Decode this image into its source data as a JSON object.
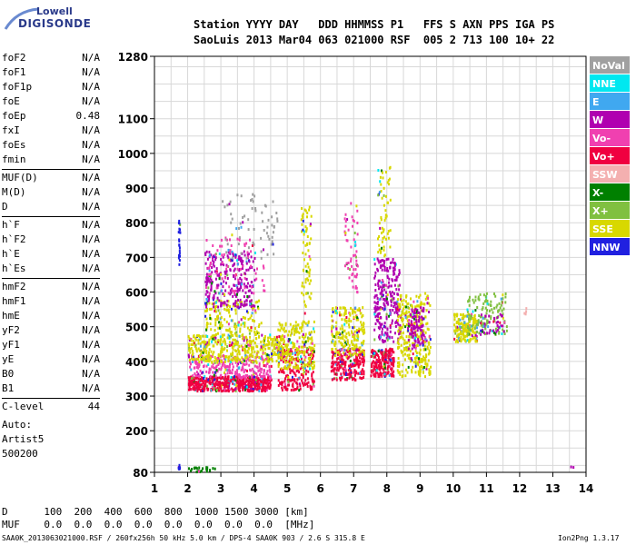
{
  "logo": {
    "line1": "Lowell",
    "line2": "DIGISONDE"
  },
  "header": {
    "line1": "Station YYYY DAY   DDD HHMMSS P1   FFS S AXN PPS IGA PS",
    "line2": "SaoLuis 2013 Mar04 063 021000 RSF  005 2 713 100 10+ 22"
  },
  "params": {
    "groups": [
      [
        [
          "foF2",
          "N/A"
        ],
        [
          "foF1",
          "N/A"
        ],
        [
          "foF1p",
          "N/A"
        ],
        [
          "foE",
          "N/A"
        ],
        [
          "foEp",
          "0.48"
        ],
        [
          "fxI",
          "N/A"
        ],
        [
          "foEs",
          "N/A"
        ],
        [
          "fmin",
          "N/A"
        ]
      ],
      [
        [
          "MUF(D)",
          "N/A"
        ],
        [
          "M(D)",
          "N/A"
        ],
        [
          "D",
          "N/A"
        ]
      ],
      [
        [
          "h`F",
          "N/A"
        ],
        [
          "h`F2",
          "N/A"
        ],
        [
          "h`E",
          "N/A"
        ],
        [
          "h`Es",
          "N/A"
        ]
      ],
      [
        [
          "hmF2",
          "N/A"
        ],
        [
          "hmF1",
          "N/A"
        ],
        [
          "hmE",
          "N/A"
        ],
        [
          "yF2",
          "N/A"
        ],
        [
          "yF1",
          "N/A"
        ],
        [
          "yE",
          "N/A"
        ],
        [
          "B0",
          "N/A"
        ],
        [
          "B1",
          "N/A"
        ]
      ],
      [
        [
          "C-level",
          "44"
        ]
      ]
    ],
    "auto_label": "Auto:",
    "artist": "Artist5",
    "artist_code": "500200"
  },
  "mufd": {
    "row_d": "D      100  200  400  600  800  1000 1500 3000 [km]",
    "row_muf": "MUF    0.0  0.0  0.0  0.0  0.0  0.0  0.0  0.0  [MHz]"
  },
  "footer": {
    "left": "SAA0K_2013063021000.RSF / 260fx256h 50 kHz 5.0 km / DPS-4 SAA0K 903 / 2.6 S 315.8 E",
    "right": "Ion2Png 1.3.17"
  },
  "legend": [
    {
      "label": "NoVal",
      "bg": "#a0a0a0"
    },
    {
      "label": "NNE",
      "bg": "#00e8f0"
    },
    {
      "label": "E",
      "bg": "#40a8f0"
    },
    {
      "label": "W",
      "bg": "#b000b0"
    },
    {
      "label": "Vo-",
      "bg": "#f040b0"
    },
    {
      "label": "Vo+",
      "bg": "#f00040"
    },
    {
      "label": "SSW",
      "bg": "#f4b0b0"
    },
    {
      "label": "X-",
      "bg": "#008000"
    },
    {
      "label": "X+",
      "bg": "#80c040"
    },
    {
      "label": "SSE",
      "bg": "#d8d800"
    },
    {
      "label": "NNW",
      "bg": "#2020e0"
    }
  ],
  "chart_data": {
    "type": "scatter",
    "title": "",
    "xlabel": "",
    "ylabel": "",
    "x_unit": "MHz",
    "y_unit": "km",
    "xlim": [
      1,
      14
    ],
    "ylim": [
      80,
      1280
    ],
    "x_ticks": [
      1,
      2,
      3,
      4,
      5,
      6,
      7,
      8,
      9,
      10,
      11,
      12,
      13,
      14
    ],
    "y_ticks": [
      80,
      200,
      300,
      400,
      500,
      600,
      700,
      800,
      900,
      1000,
      1100,
      1280
    ],
    "grid": true,
    "legend_position": "right",
    "regions": [
      {
        "x": [
          1.7,
          1.75
        ],
        "y": [
          680,
          820
        ],
        "color": "NNW",
        "n": 20
      },
      {
        "x": [
          1.7,
          1.75
        ],
        "y": [
          85,
          105
        ],
        "color": "NNW",
        "n": 8
      },
      {
        "x": [
          2.0,
          2.8
        ],
        "y": [
          85,
          100
        ],
        "color": "X-",
        "n": 25
      },
      {
        "x": [
          2.0,
          4.5
        ],
        "y": [
          318,
          360
        ],
        "color": "Vo+",
        "n": 520
      },
      {
        "x": [
          2.0,
          4.5
        ],
        "y": [
          355,
          420
        ],
        "color": "Vo-",
        "n": 260
      },
      {
        "x": [
          2.0,
          4.8
        ],
        "y": [
          400,
          480
        ],
        "color": "SSE",
        "n": 420
      },
      {
        "x": [
          2.5,
          4.2
        ],
        "y": [
          480,
          580
        ],
        "color": "SSE",
        "n": 160
      },
      {
        "x": [
          2.5,
          4.0
        ],
        "y": [
          560,
          720
        ],
        "color": "W",
        "n": 260
      },
      {
        "x": [
          2.5,
          4.3
        ],
        "y": [
          600,
          760
        ],
        "color": "Vo-",
        "n": 80
      },
      {
        "x": [
          3.0,
          4.7
        ],
        "y": [
          700,
          890
        ],
        "color": "NoVal",
        "n": 70
      },
      {
        "x": [
          4.7,
          5.8
        ],
        "y": [
          320,
          440
        ],
        "color": "Vo+",
        "n": 200
      },
      {
        "x": [
          4.7,
          5.8
        ],
        "y": [
          380,
          520
        ],
        "color": "SSE",
        "n": 240
      },
      {
        "x": [
          5.4,
          5.7
        ],
        "y": [
          520,
          860
        ],
        "color": "SSE",
        "n": 70
      },
      {
        "x": [
          6.3,
          7.3
        ],
        "y": [
          350,
          440
        ],
        "color": "Vo+",
        "n": 220
      },
      {
        "x": [
          6.3,
          7.3
        ],
        "y": [
          420,
          560
        ],
        "color": "SSE",
        "n": 220
      },
      {
        "x": [
          6.7,
          7.1
        ],
        "y": [
          600,
          860
        ],
        "color": "Vo-",
        "n": 60
      },
      {
        "x": [
          7.5,
          8.2
        ],
        "y": [
          360,
          440
        ],
        "color": "Vo+",
        "n": 220
      },
      {
        "x": [
          7.6,
          8.4
        ],
        "y": [
          460,
          700
        ],
        "color": "W",
        "n": 260
      },
      {
        "x": [
          7.7,
          8.1
        ],
        "y": [
          700,
          970
        ],
        "color": "SSE",
        "n": 60
      },
      {
        "x": [
          8.3,
          9.3
        ],
        "y": [
          360,
          600
        ],
        "color": "SSE",
        "n": 320
      },
      {
        "x": [
          8.6,
          9.1
        ],
        "y": [
          440,
          560
        ],
        "color": "W",
        "n": 100
      },
      {
        "x": [
          10.0,
          10.7
        ],
        "y": [
          460,
          540
        ],
        "color": "SSE",
        "n": 180
      },
      {
        "x": [
          10.4,
          11.6
        ],
        "y": [
          480,
          600
        ],
        "color": "X+",
        "n": 130
      },
      {
        "x": [
          10.8,
          11.5
        ],
        "y": [
          480,
          540
        ],
        "color": "W",
        "n": 40
      },
      {
        "x": [
          12.1,
          12.2
        ],
        "y": [
          540,
          560
        ],
        "color": "SSW",
        "n": 4
      },
      {
        "x": [
          13.5,
          13.6
        ],
        "y": [
          95,
          105
        ],
        "color": "W",
        "n": 2
      }
    ]
  }
}
